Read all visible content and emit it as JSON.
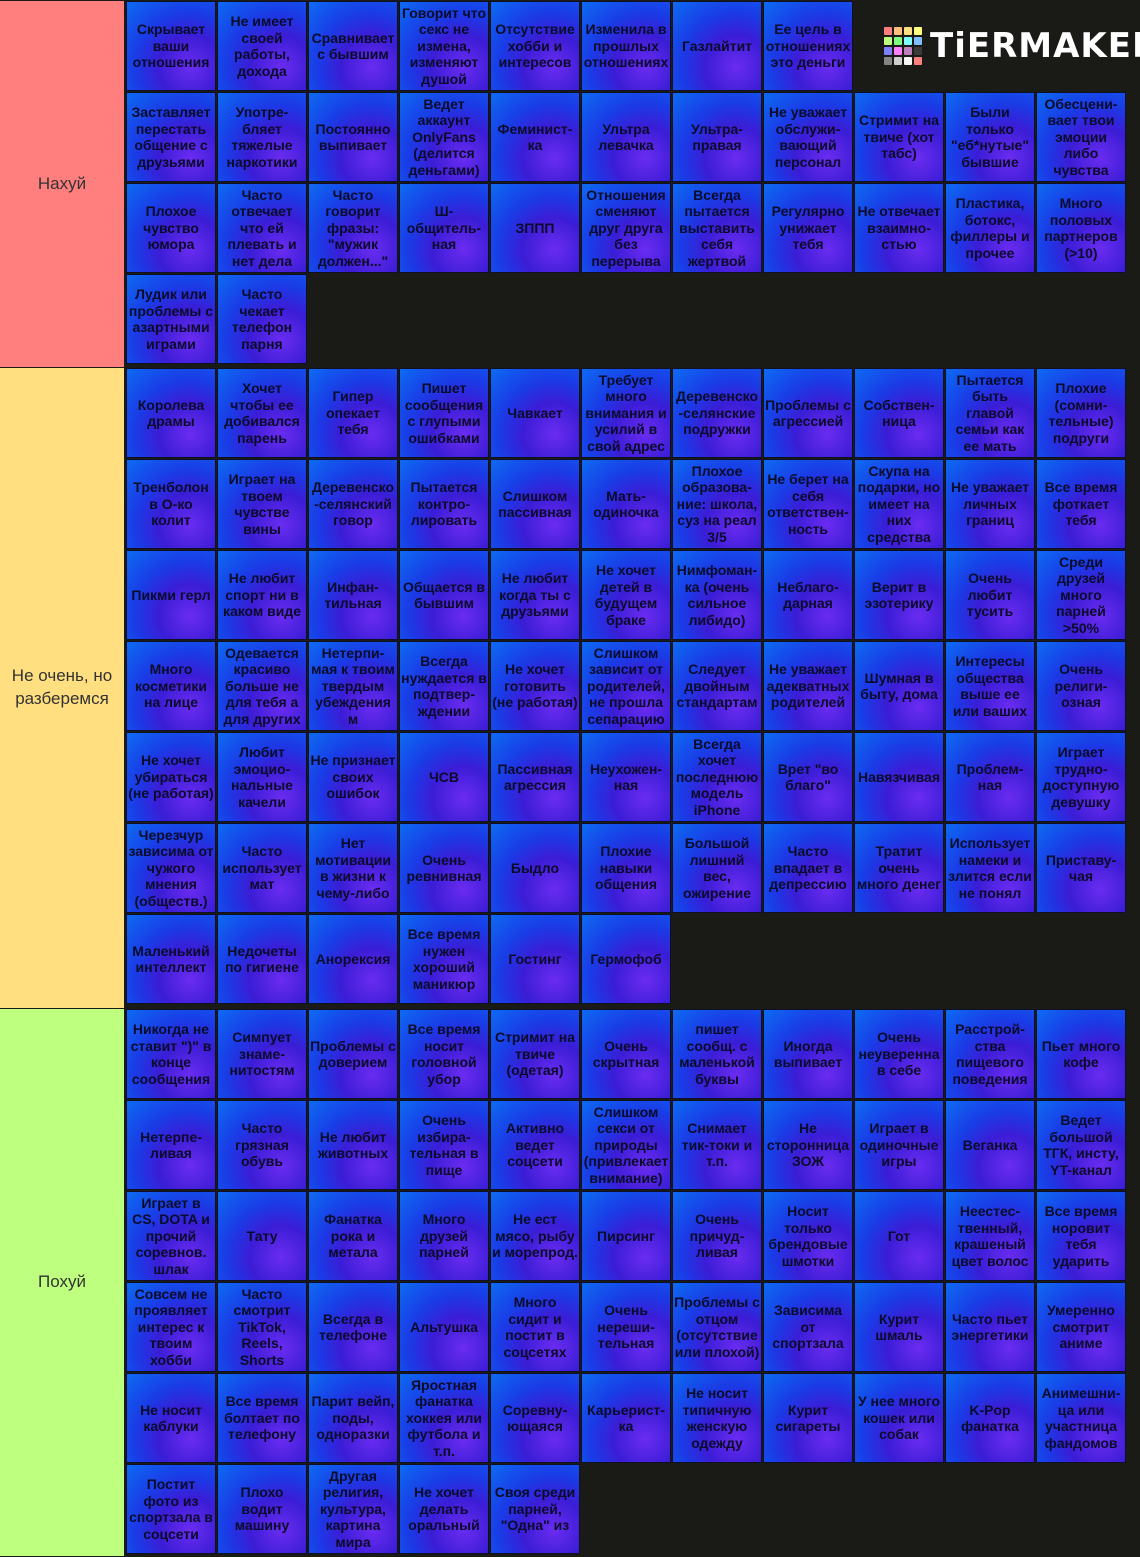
{
  "logo": {
    "text": "TiERMAKER",
    "colors": [
      "#ff7f7f",
      "#ffbf7f",
      "#ffdf7f",
      "#ffff7f",
      "#bfff7f",
      "#7fff7f",
      "#7fffff",
      "#7fbfff",
      "#7f7fff",
      "#ff7fff",
      "#bf7fbf",
      "#3b3b3b",
      "#858585",
      "#cfcfcf",
      "#f7f7f7",
      "#ff7f7f"
    ]
  },
  "tiers": [
    {
      "label": "Нахуй",
      "color": "#ff7f7f",
      "items": [
        "Скрывает ваши отношения",
        "Не имеет своей работы, дохода",
        "Сравнивает с бывшим",
        "Говорит что секс не измена, изменяют душой",
        "Отсутствие хобби и интересов",
        "Изменила в прошлых отношениях",
        "Газлайтит",
        "Ее цель в отношениях это деньги",
        "Заставляет перестать общение с друзьями",
        "Употре-бляет тяжелые наркотики",
        "Постоянно выпивает",
        "Ведет аккаунт OnlyFans (делится деньгами)",
        "Феминист-ка",
        "Ультра левачка",
        "Ультра-правая",
        "Не уважает обслужи-вающий персонал",
        "Стримит на твиче (хот табс)",
        "Были только \"еб*нутые\" бывшие",
        "Обесцени-вает твои эмоции либо чувства",
        "Плохое чувство юмора",
        "Часто отвечает что ей плевать и нет дела",
        "Часто говорит фразы: \"мужик должен...\"",
        "Ш-общитель-ная",
        "ЗППП",
        "Отношения сменяют друг друга без перерыва",
        "Всегда пытается выставить себя жертвой",
        "Регулярно унижает тебя",
        "Не отвечает взаимно-стью",
        "Пластика, ботокс, филлеры и прочее",
        "Много половых партнеров (>10)",
        "Лудик или проблемы с азартными играми",
        "Часто чекает телефон парня"
      ]
    },
    {
      "label": "Не очень, но разберемся",
      "color": "#ffdf7f",
      "items": [
        "Королева драмы",
        "Хочет чтобы ее добивался парень",
        "Гипер опекает тебя",
        "Пишет сообщения с глупыми ошибками",
        "Чавкает",
        "Требует много внимания и усилий в свой адрес",
        "Деревенско-селянские подружки",
        "Проблемы с агрессией",
        "Собствен-ница",
        "Пытается быть главой семьи как ее мать",
        "Плохие (сомни-тельные) подруги",
        "Тренболон в О-ко колит",
        "Играет на твоем чувстве вины",
        "Деревенско-селянский говор",
        "Пытается контро-лировать",
        "Слишком пассивная",
        "Мать-одиночка",
        "Плохое образова-ние: школа, суз на реал 3/5",
        "Не берет на себя ответствен-ность",
        "Скупа на подарки, но имеет на них средства",
        "Не уважает личных границ",
        "Все время фоткает тебя",
        "Пикми герл",
        "Не любит спорт ни в каком виде",
        "Инфан-тильная",
        "Общается в бывшим",
        "Не любит когда ты с друзьями",
        "Не хочет детей в будущем браке",
        "Нимфоман-ка (очень сильное либидо)",
        "Неблаго-дарная",
        "Верит в эзотерику",
        "Очень любит тусить",
        "Среди друзей много парней >50%",
        "Много косметики на лице",
        "Одевается красиво больше не для тебя а для других",
        "Нетерпи-мая к твоим твердым убеждениям",
        "Всегда нуждается в подтвер-ждении",
        "Не хочет готовить (не работая)",
        "Слишком зависит от родителей, не прошла сепарацию",
        "Следует двойным стандартам",
        "Не уважает адекватных родителей",
        "Шумная в быту, дома",
        "Интересы общества выше ее или ваших",
        "Очень религи-озная",
        "Не хочет убираться (не работая)",
        "Любит эмоцио-нальные качели",
        "Не признает своих ошибок",
        "ЧСВ",
        "Пассивная агрессия",
        "Неухожен-ная",
        "Всегда хочет последнюю модель iPhone",
        "Врет \"во благо\"",
        "Навязчивая",
        "Проблем-ная",
        "Играет трудно-доступную девушку",
        "Черезчур зависима от чужого мнения (обществ.)",
        "Часто использует мат",
        "Нет мотивации в жизни к чему-либо",
        "Очень ревнивная",
        "Быдло",
        "Плохие навыки общения",
        "Большой лишний вес, ожирение",
        "Часто впадает в депрессию",
        "Тратит очень много денег",
        "Использует намеки и злится если не понял",
        "Приставу-чая",
        "Маленький интеллект",
        "Недочеты по гигиене",
        "Анорексия",
        "Все время нужен хороший маникюр",
        "Гостинг",
        "Гермофоб"
      ]
    },
    {
      "label": "Похуй",
      "color": "#bfff7f",
      "items": [
        "Никогда не ставит \")\" в конце сообщения",
        "Симпует знаме-нитостям",
        "Проблемы с доверием",
        "Все время носит головной убор",
        "Стримит на твиче (одетая)",
        "Очень скрытная",
        "пишет сообщ. с маленькой буквы",
        "Иногда выпивает",
        "Очень неуверенна в себе",
        "Расстрой-ства пищевого поведения",
        "Пьет много кофе",
        "Нетерпе-ливая",
        "Часто грязная обувь",
        "Не любит животных",
        "Очень избира-тельная в пище",
        "Активно ведет соцсети",
        "Слишком секси от природы (привлекает внимание)",
        "Снимает тик-токи и т.п.",
        "Не сторонница ЗОЖ",
        "Играет в одиночные игры",
        "Веганка",
        "Ведет большой ТГК, инсту, YT-канал",
        "Играет в CS, DOTA и прочий соревнов. шлак",
        "Тату",
        "Фанатка рока и метала",
        "Много друзей парней",
        "Не ест мясо, рыбу и морепрод.",
        "Пирсинг",
        "Очень причуд-ливая",
        "Носит только брендовые шмотки",
        "Гот",
        "Неестес-твенный, крашеный цвет волос",
        "Все время норовит тебя ударить",
        "Совсем не проявляет интерес к твоим хобби",
        "Часто смотрит TikTok, Reels, Shorts",
        "Всегда в телефоне",
        "Альтушка",
        "Много сидит и постит в соцсетях",
        "Очень нереши-тельная",
        "Проблемы с отцом (отсутствие или плохой)",
        "Зависима от спортзала",
        "Курит шмаль",
        "Часто пьет энергетики",
        "Умеренно смотрит аниме",
        "Не носит каблуки",
        "Все время болтает по телефону",
        "Парит вейп, поды, одноразки",
        "Яростная фанатка хоккея или футбола и т.п.",
        "Соревну-ющаяся",
        "Карьерист-ка",
        "Не носит типичную женскую одежду",
        "Курит сигареты",
        "У нее много кошек или собак",
        "K-Pop фанатка",
        "Анимешни-ца или участница фандомов",
        "Постит фото из спортзала в соцсети",
        "Плохо водит машину",
        "Другая религия, культура, картина мира",
        "Не хочет делать оральный",
        "Своя среди парней, \"Одна\" из"
      ]
    }
  ]
}
